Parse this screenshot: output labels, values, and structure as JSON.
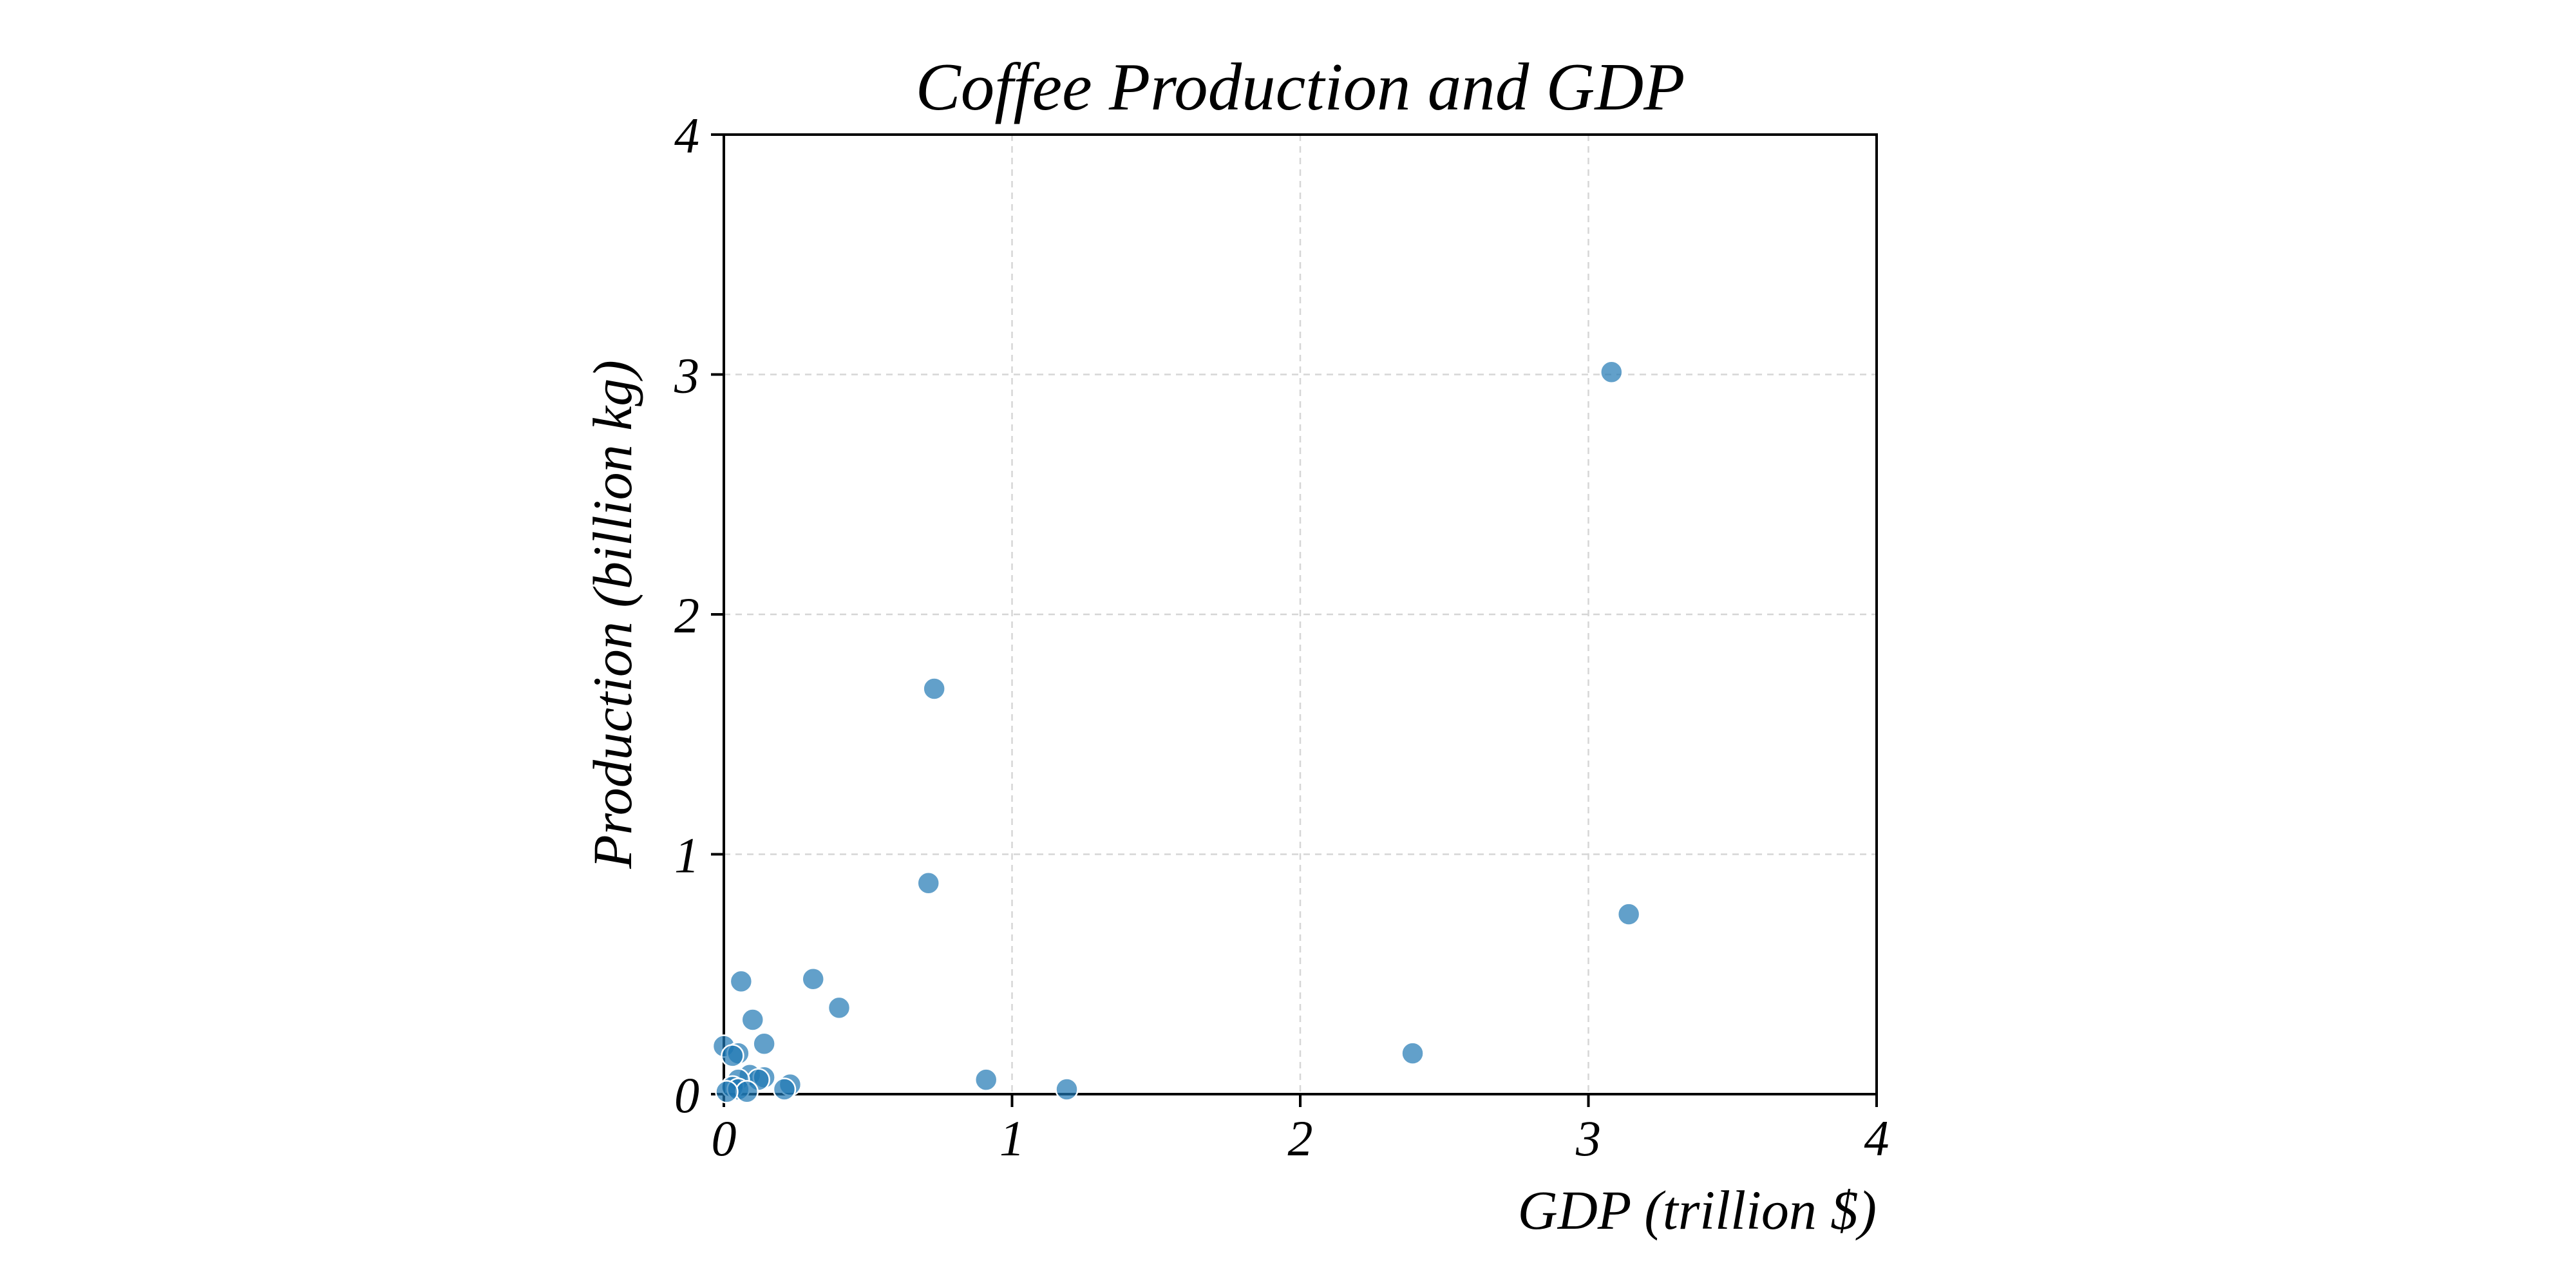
{
  "chart_data": {
    "type": "scatter",
    "title": "Coffee Production and GDP",
    "xlabel": "GDP (trillion $)",
    "ylabel": "Production (billion kg)",
    "xlim": [
      0,
      4
    ],
    "ylim": [
      0,
      4
    ],
    "x_ticks": [
      "0",
      "1",
      "2",
      "3",
      "4"
    ],
    "y_ticks": [
      "0",
      "1",
      "2",
      "3",
      "4"
    ],
    "grid": true,
    "legend": "none",
    "colors": {
      "point": "#1f77b4",
      "grid": "#d6d6d6",
      "axis": "#000000",
      "text": "#000000"
    },
    "points": [
      {
        "x": 3.08,
        "y": 3.01
      },
      {
        "x": 0.73,
        "y": 1.69
      },
      {
        "x": 0.71,
        "y": 0.88
      },
      {
        "x": 3.14,
        "y": 0.75
      },
      {
        "x": 0.31,
        "y": 0.48
      },
      {
        "x": 0.06,
        "y": 0.47
      },
      {
        "x": 0.4,
        "y": 0.36
      },
      {
        "x": 0.1,
        "y": 0.31
      },
      {
        "x": 0.14,
        "y": 0.21
      },
      {
        "x": 0.0,
        "y": 0.2
      },
      {
        "x": 0.05,
        "y": 0.17
      },
      {
        "x": 0.03,
        "y": 0.16
      },
      {
        "x": 2.39,
        "y": 0.17
      },
      {
        "x": 0.09,
        "y": 0.08
      },
      {
        "x": 0.14,
        "y": 0.07
      },
      {
        "x": 0.12,
        "y": 0.06
      },
      {
        "x": 0.05,
        "y": 0.06
      },
      {
        "x": 0.91,
        "y": 0.06
      },
      {
        "x": 0.23,
        "y": 0.04
      },
      {
        "x": 0.03,
        "y": 0.03
      },
      {
        "x": 0.05,
        "y": 0.02
      },
      {
        "x": 0.21,
        "y": 0.02
      },
      {
        "x": 1.19,
        "y": 0.02
      },
      {
        "x": 0.08,
        "y": 0.01
      },
      {
        "x": 0.01,
        "y": 0.01
      }
    ]
  }
}
